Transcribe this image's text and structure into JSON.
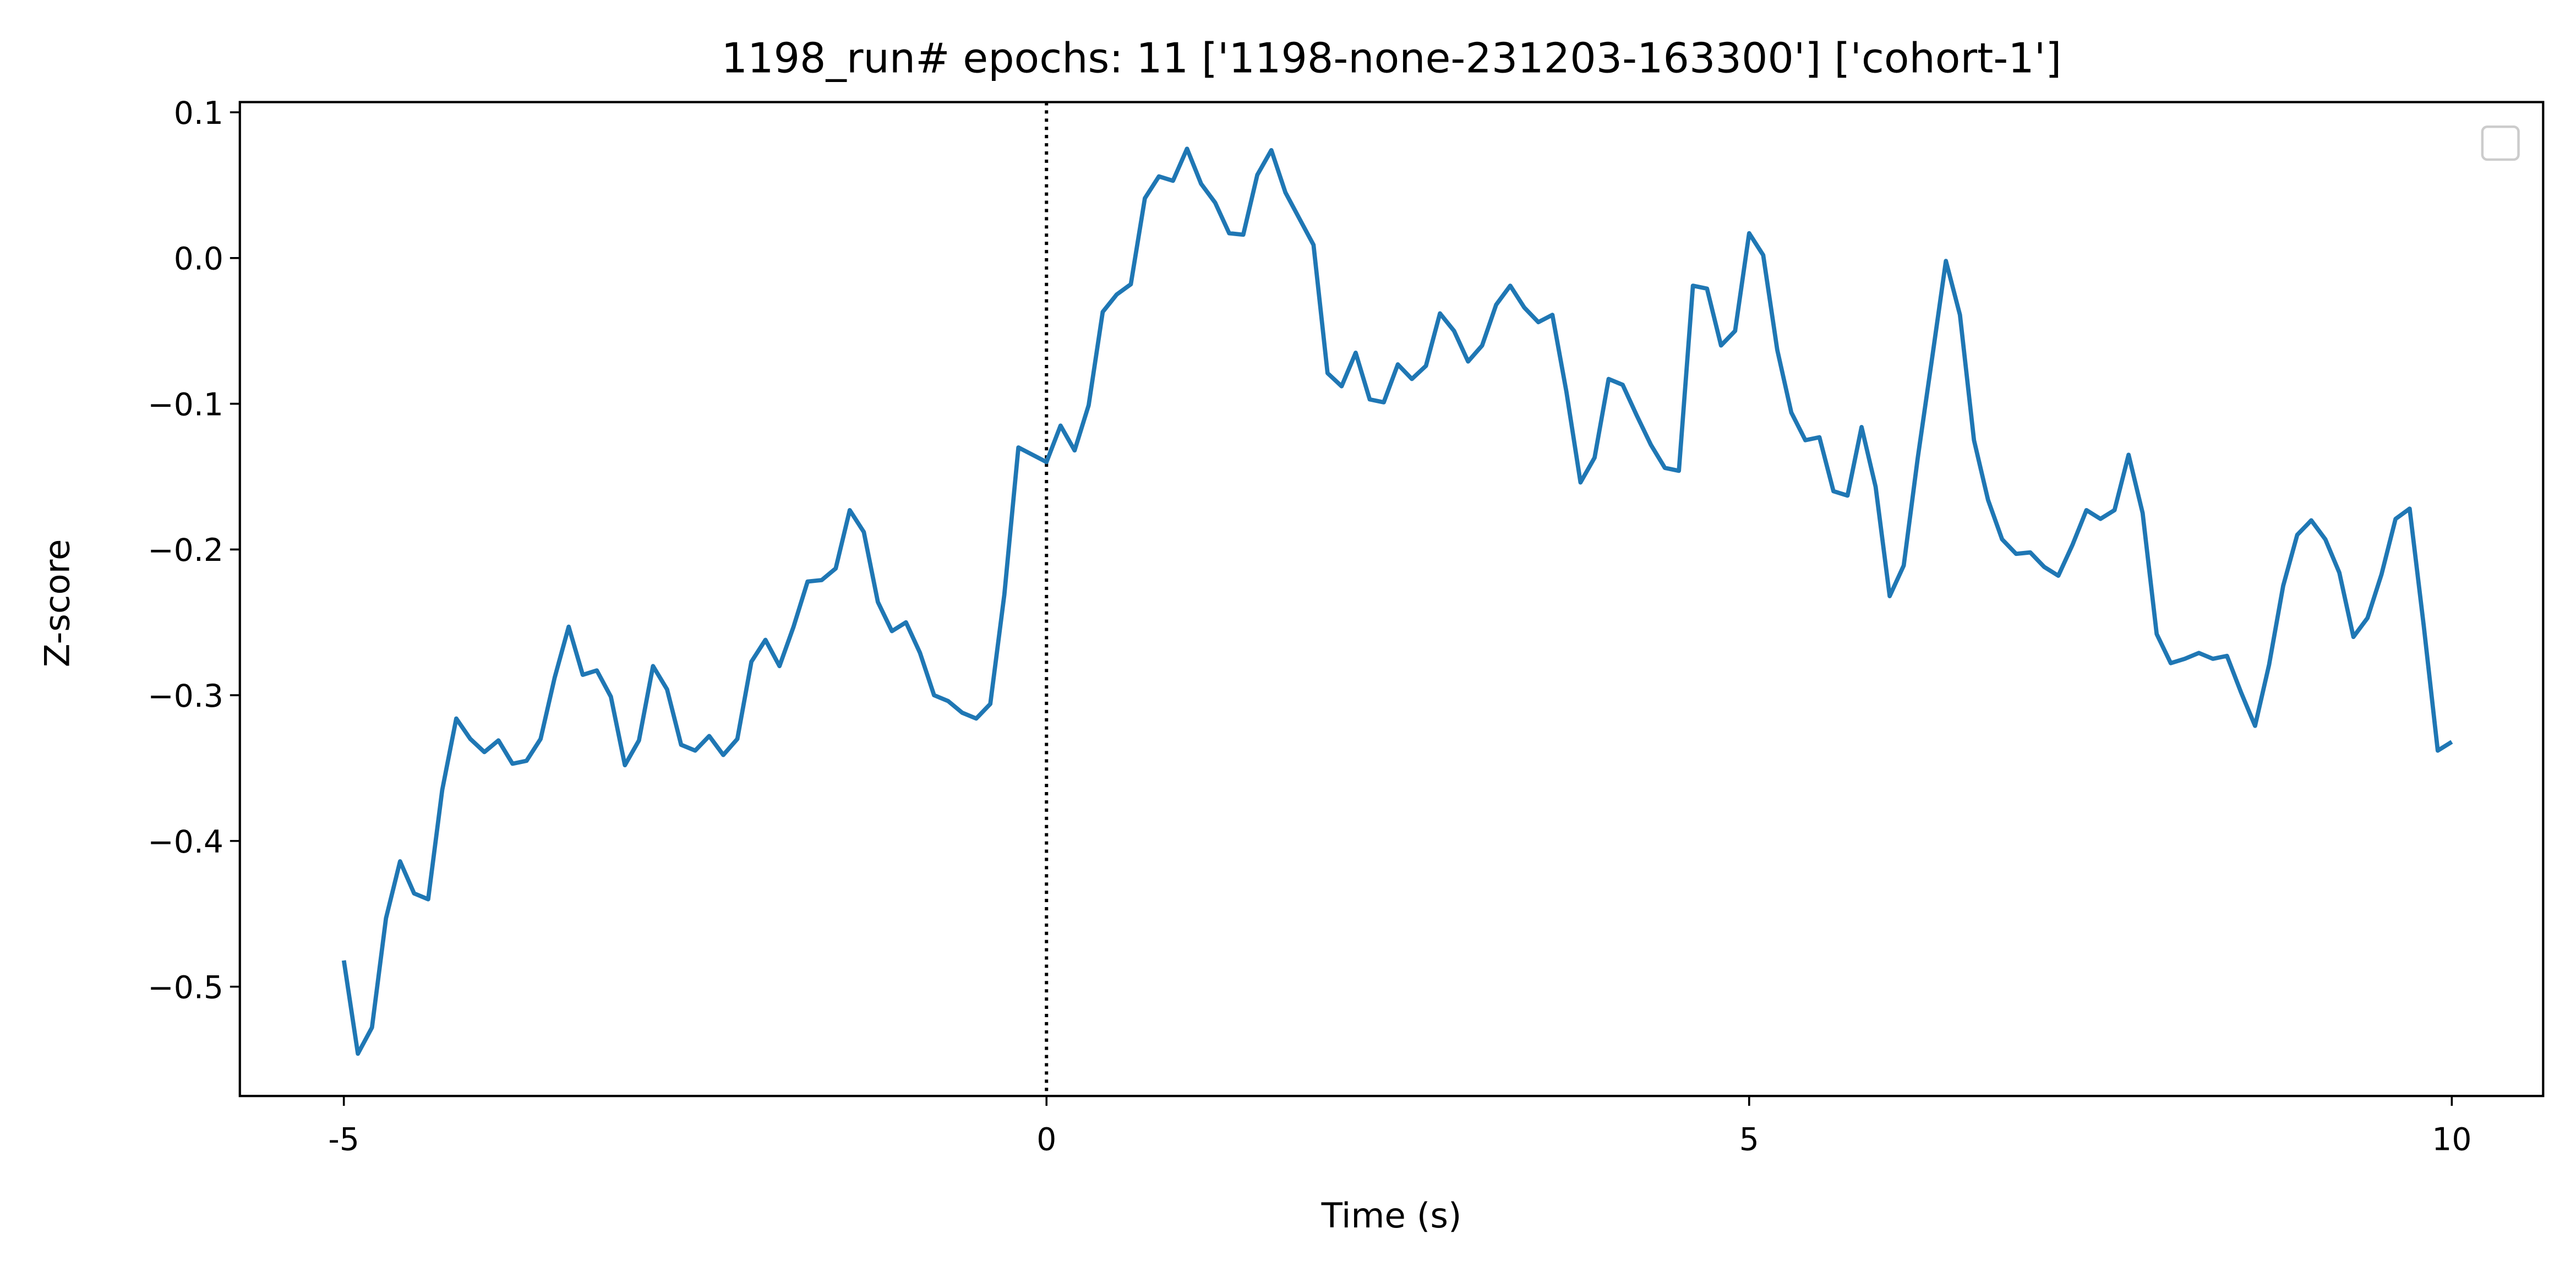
{
  "chart_data": {
    "type": "line",
    "title": "1198_run# epochs: 11 ['1198-none-231203-163300'] ['cohort-1']",
    "xlabel": "Time (s)",
    "ylabel": "Z-score",
    "color": "#1f77b4",
    "x": [
      -5.0,
      -4.9,
      -4.8,
      -4.7,
      -4.6,
      -4.5,
      -4.4,
      -4.3,
      -4.2,
      -4.1,
      -4.0,
      -3.9,
      -3.8,
      -3.7,
      -3.6,
      -3.5,
      -3.4,
      -3.3,
      -3.2,
      -3.1,
      -3.0,
      -2.9,
      -2.8,
      -2.7,
      -2.6,
      -2.5,
      -2.4,
      -2.3,
      -2.2,
      -2.1,
      -2.0,
      -1.9,
      -1.8,
      -1.7,
      -1.6,
      -1.5,
      -1.4,
      -1.3,
      -1.2,
      -1.1,
      -1.0,
      -0.9,
      -0.8,
      -0.7,
      -0.6,
      -0.5,
      -0.4,
      -0.3,
      -0.2,
      -0.1,
      0.0,
      0.1,
      0.2,
      0.3,
      0.4,
      0.5,
      0.6,
      0.7,
      0.8,
      0.9,
      1.0,
      1.1,
      1.2,
      1.3,
      1.4,
      1.5,
      1.6,
      1.7,
      1.8,
      1.9,
      2.0,
      2.1,
      2.2,
      2.3,
      2.4,
      2.5,
      2.6,
      2.7,
      2.8,
      2.9,
      3.0,
      3.1,
      3.2,
      3.3,
      3.4,
      3.5,
      3.6,
      3.7,
      3.8,
      3.9,
      4.0,
      4.1,
      4.2,
      4.3,
      4.4,
      4.5,
      4.6,
      4.7,
      4.8,
      4.9,
      5.0,
      5.1,
      5.2,
      5.3,
      5.4,
      5.5,
      5.6,
      5.7,
      5.8,
      5.9,
      6.0,
      6.1,
      6.2,
      6.3,
      6.4,
      6.5,
      6.6,
      6.7,
      6.8,
      6.9,
      7.0,
      7.1,
      7.2,
      7.3,
      7.4,
      7.5,
      7.6,
      7.7,
      7.8,
      7.9,
      8.0,
      8.1,
      8.2,
      8.3,
      8.4,
      8.5,
      8.6,
      8.7,
      8.8,
      8.9,
      9.0,
      9.1,
      9.2,
      9.3,
      9.4,
      9.5,
      9.6,
      9.7,
      9.8,
      9.9,
      10.0
    ],
    "values": [
      -0.482,
      -0.546,
      -0.528,
      -0.453,
      -0.414,
      -0.436,
      -0.44,
      -0.365,
      -0.316,
      -0.33,
      -0.339,
      -0.331,
      -0.347,
      -0.345,
      -0.33,
      -0.288,
      -0.253,
      -0.286,
      -0.283,
      -0.301,
      -0.348,
      -0.331,
      -0.28,
      -0.296,
      -0.334,
      -0.338,
      -0.328,
      -0.341,
      -0.33,
      -0.277,
      -0.262,
      -0.28,
      -0.253,
      -0.222,
      -0.221,
      -0.213,
      -0.173,
      -0.188,
      -0.236,
      -0.256,
      -0.25,
      -0.271,
      -0.3,
      -0.304,
      -0.312,
      -0.316,
      -0.306,
      -0.231,
      -0.13,
      -0.135,
      -0.14,
      -0.115,
      -0.132,
      -0.101,
      -0.037,
      -0.025,
      -0.018,
      0.041,
      0.056,
      0.053,
      0.075,
      0.051,
      0.038,
      0.017,
      0.016,
      0.057,
      0.074,
      0.045,
      0.027,
      0.009,
      -0.079,
      -0.088,
      -0.065,
      -0.097,
      -0.099,
      -0.073,
      -0.083,
      -0.074,
      -0.038,
      -0.05,
      -0.071,
      -0.06,
      -0.032,
      -0.019,
      -0.034,
      -0.044,
      -0.039,
      -0.092,
      -0.154,
      -0.137,
      -0.083,
      -0.087,
      -0.108,
      -0.128,
      -0.144,
      -0.146,
      -0.019,
      -0.021,
      -0.06,
      -0.05,
      0.017,
      0.002,
      -0.063,
      -0.106,
      -0.125,
      -0.123,
      -0.16,
      -0.163,
      -0.116,
      -0.157,
      -0.232,
      -0.211,
      -0.137,
      -0.07,
      -0.002,
      -0.039,
      -0.125,
      -0.166,
      -0.193,
      -0.203,
      -0.202,
      -0.212,
      -0.218,
      -0.197,
      -0.173,
      -0.179,
      -0.173,
      -0.135,
      -0.175,
      -0.258,
      -0.278,
      -0.275,
      -0.271,
      -0.275,
      -0.273,
      -0.298,
      -0.321,
      -0.279,
      -0.225,
      -0.19,
      -0.18,
      -0.193,
      -0.216,
      -0.26,
      -0.247,
      -0.217,
      -0.179,
      -0.172,
      -0.252,
      -0.338,
      -0.332
    ],
    "xlim": [
      -5.74,
      10.65
    ],
    "ylim": [
      -0.575,
      0.107
    ],
    "xticks": [
      -5,
      0,
      5,
      10
    ],
    "yticks": [
      0.1,
      {
        "value": 0,
        "label": "0.0"
      },
      {
        "value": -0.1,
        "label": "−0.1"
      },
      {
        "value": -0.2,
        "label": "−0.2"
      },
      {
        "value": -0.3,
        "label": "−0.3"
      },
      {
        "value": -0.4,
        "label": "−0.4"
      },
      {
        "value": -0.5,
        "label": "−0.5"
      }
    ],
    "vlines": [
      0
    ]
  }
}
